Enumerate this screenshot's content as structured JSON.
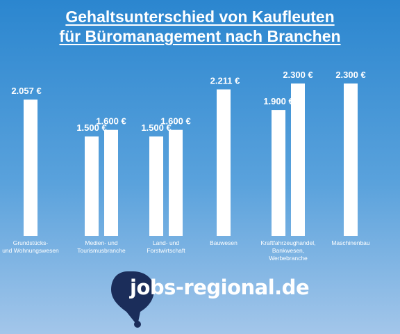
{
  "title_line1": "Gehaltsunterschied von Kaufleuten",
  "title_line2": "für Büromanagement nach Branchen",
  "colors": {
    "bar": "#ffffff",
    "background_top": "#2b86cf",
    "background_bottom": "#a3c6ea",
    "logo_circle": "#1b2d5a"
  },
  "logo": {
    "text": "jobs-regional.de",
    "icon": "map-pin-icon"
  },
  "chart_data": {
    "type": "bar",
    "title": "Gehaltsunterschied von Kaufleuten für Büromanagement nach Branchen",
    "groups": [
      {
        "label": [
          "Grundstücks-",
          "und Wohnungswesen"
        ],
        "values": [
          2057
        ],
        "value_labels": [
          "2.057 €"
        ]
      },
      {
        "label": [
          "Medien- und",
          "Tourismusbranche"
        ],
        "values": [
          1500,
          1600
        ],
        "value_labels": [
          "1.500 €",
          "1.600 €"
        ]
      },
      {
        "label": [
          "Land- und",
          "Forstwirtschaft"
        ],
        "values": [
          1500,
          1600
        ],
        "value_labels": [
          "1.500 €",
          "1.600 €"
        ]
      },
      {
        "label": [
          "Bauwesen"
        ],
        "values": [
          2211
        ],
        "value_labels": [
          "2.211 €"
        ]
      },
      {
        "label": [
          "Kraftfahrzeughandel,",
          "Bankwesen,",
          "Werbebranche"
        ],
        "values": [
          1900,
          2300
        ],
        "value_labels": [
          "1.900 €",
          "2.300 €"
        ]
      },
      {
        "label": [
          "Maschinenbau"
        ],
        "values": [
          2300
        ],
        "value_labels": [
          "2.300 €"
        ]
      }
    ],
    "ylim": [
      0,
      2300
    ],
    "grid": false,
    "legend": "none",
    "xlabel": "",
    "ylabel": ""
  }
}
